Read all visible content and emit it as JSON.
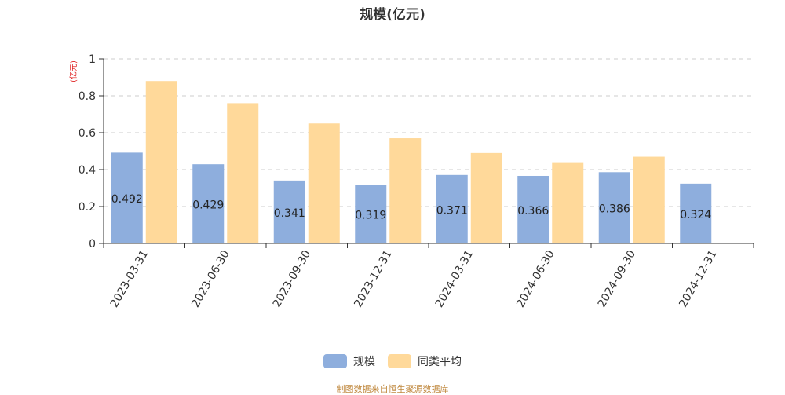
{
  "colors": {
    "series1": "#8eaedd",
    "series2": "#ffd99a",
    "axis": "#333333",
    "grid": "#cccccc",
    "ylabel": "#e02020",
    "source": "#c0893f"
  },
  "chart_data": {
    "type": "bar",
    "title": "规模(亿元)",
    "ylabel": "(亿元)",
    "xlabel": "",
    "ylim": [
      0,
      1
    ],
    "yticks": [
      "0",
      "0.2",
      "0.4",
      "0.6",
      "0.8",
      "1"
    ],
    "grid": true,
    "legend_position": "bottom",
    "categories": [
      "2023-03-31",
      "2023-06-30",
      "2023-09-30",
      "2023-12-31",
      "2024-03-31",
      "2024-06-30",
      "2024-09-30",
      "2024-12-31"
    ],
    "series": [
      {
        "name": "规模",
        "values": [
          0.492,
          0.429,
          0.341,
          0.319,
          0.371,
          0.366,
          0.386,
          0.324
        ],
        "data_labels": [
          "0.492",
          "0.429",
          "0.341",
          "0.319",
          "0.371",
          "0.366",
          "0.386",
          "0.324"
        ]
      },
      {
        "name": "同类平均",
        "values": [
          0.88,
          0.76,
          0.65,
          0.57,
          0.49,
          0.44,
          0.47,
          null
        ]
      }
    ]
  },
  "legend": {
    "items": [
      "规模",
      "同类平均"
    ]
  },
  "source_note": "制图数据来自恒生聚源数据库"
}
